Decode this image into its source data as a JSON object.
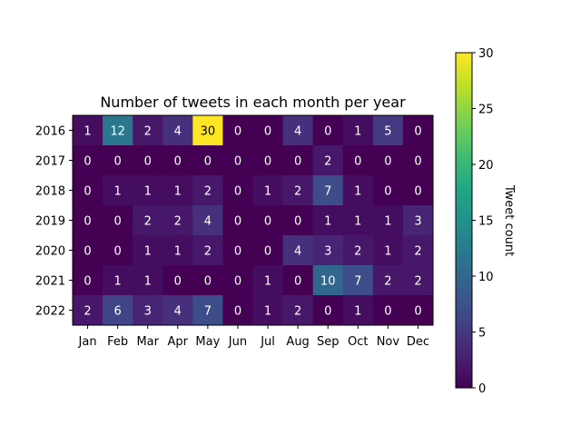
{
  "chart_data": {
    "type": "heatmap",
    "title": "Number of tweets in each month per year",
    "x_categories": [
      "Jan",
      "Feb",
      "Mar",
      "Apr",
      "May",
      "Jun",
      "Jul",
      "Aug",
      "Sep",
      "Oct",
      "Nov",
      "Dec"
    ],
    "y_categories": [
      "2016",
      "2017",
      "2018",
      "2019",
      "2020",
      "2021",
      "2022"
    ],
    "values": [
      [
        1,
        12,
        2,
        4,
        30,
        0,
        0,
        4,
        0,
        1,
        5,
        0
      ],
      [
        0,
        0,
        0,
        0,
        0,
        0,
        0,
        0,
        2,
        0,
        0,
        0
      ],
      [
        0,
        1,
        1,
        1,
        2,
        0,
        1,
        2,
        7,
        1,
        0,
        0
      ],
      [
        0,
        0,
        2,
        2,
        4,
        0,
        0,
        0,
        1,
        1,
        1,
        3
      ],
      [
        0,
        0,
        1,
        1,
        2,
        0,
        0,
        4,
        3,
        2,
        1,
        2
      ],
      [
        0,
        1,
        1,
        0,
        0,
        0,
        1,
        0,
        10,
        7,
        2,
        2
      ],
      [
        2,
        6,
        3,
        4,
        7,
        0,
        1,
        2,
        0,
        1,
        0,
        0
      ]
    ],
    "colormap": "viridis",
    "color_range": [
      0,
      30
    ],
    "colorbar": {
      "label": "Tweet count",
      "ticks": [
        "0",
        "5",
        "10",
        "15",
        "20",
        "25",
        "30"
      ]
    }
  }
}
